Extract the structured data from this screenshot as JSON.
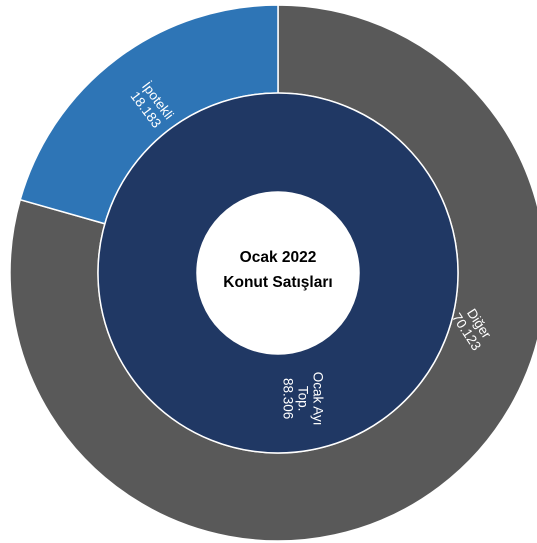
{
  "chart_data": {
    "type": "pie",
    "title_lines": [
      "Ocak 2022",
      "Konut Satışları"
    ],
    "inner_ring": [
      {
        "label": "Ocak Ayı\nTop.\n88.306",
        "value": 88306,
        "color": "#203864"
      }
    ],
    "outer_ring": [
      {
        "label": "Diğer\n70.123",
        "value": 70123,
        "color": "#595959"
      },
      {
        "label": "İpotekli\n18.183",
        "value": 18183,
        "color": "#2E75B6"
      }
    ]
  }
}
